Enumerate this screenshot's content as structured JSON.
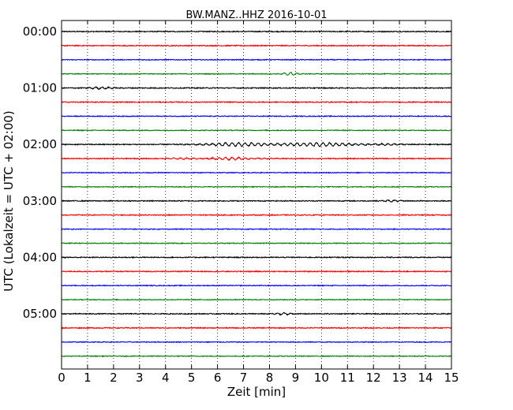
{
  "chart_data": {
    "type": "line",
    "title": "BW.MANZ..HHZ 2016-10-01",
    "xlabel": "Zeit  [min]",
    "ylabel": "UTC (Lokalzeit = UTC + 02:00)",
    "xlim": [
      0,
      15
    ],
    "x_ticks": [
      "0",
      "1",
      "2",
      "3",
      "4",
      "5",
      "6",
      "7",
      "8",
      "9",
      "10",
      "11",
      "12",
      "13",
      "14",
      "15"
    ],
    "y_tick_labels": [
      "00:00",
      "01:00",
      "02:00",
      "03:00",
      "04:00",
      "05:00"
    ],
    "trace_colors": [
      "#000000",
      "#ff0000",
      "#0000ff",
      "#008000"
    ],
    "grid": "vertical dotted",
    "series": [
      {
        "offset": "00:00",
        "color": "#000000",
        "noise": 0.12,
        "events": []
      },
      {
        "offset": "00:15",
        "color": "#ff0000",
        "noise": 0.12,
        "events": []
      },
      {
        "offset": "00:30",
        "color": "#0000ff",
        "noise": 0.1,
        "events": []
      },
      {
        "offset": "00:45",
        "color": "#008000",
        "noise": 0.1,
        "events": [
          {
            "t": 8.8,
            "amp": 0.35,
            "width": 0.3
          }
        ]
      },
      {
        "offset": "01:00",
        "color": "#000000",
        "noise": 0.12,
        "events": [
          {
            "t": 1.5,
            "amp": 0.25,
            "width": 0.5
          }
        ]
      },
      {
        "offset": "01:15",
        "color": "#ff0000",
        "noise": 0.12,
        "events": []
      },
      {
        "offset": "01:30",
        "color": "#0000ff",
        "noise": 0.1,
        "events": []
      },
      {
        "offset": "01:45",
        "color": "#008000",
        "noise": 0.1,
        "events": []
      },
      {
        "offset": "02:00",
        "color": "#000000",
        "noise": 0.12,
        "events": [
          {
            "t": 6.8,
            "amp": 0.45,
            "width": 1.3
          },
          {
            "t": 9.9,
            "amp": 0.45,
            "width": 1.4
          },
          {
            "t": 12.5,
            "amp": 0.15,
            "width": 0.8
          }
        ]
      },
      {
        "offset": "02:15",
        "color": "#ff0000",
        "noise": 0.12,
        "events": [
          {
            "t": 6.5,
            "amp": 0.3,
            "width": 1.0
          },
          {
            "t": 4.5,
            "amp": 0.15,
            "width": 0.6
          }
        ]
      },
      {
        "offset": "02:30",
        "color": "#0000ff",
        "noise": 0.1,
        "events": []
      },
      {
        "offset": "02:45",
        "color": "#008000",
        "noise": 0.1,
        "events": []
      },
      {
        "offset": "03:00",
        "color": "#000000",
        "noise": 0.12,
        "events": [
          {
            "t": 12.6,
            "amp": 0.2,
            "width": 0.4
          }
        ]
      },
      {
        "offset": "03:15",
        "color": "#ff0000",
        "noise": 0.12,
        "events": []
      },
      {
        "offset": "03:30",
        "color": "#0000ff",
        "noise": 0.1,
        "events": []
      },
      {
        "offset": "03:45",
        "color": "#008000",
        "noise": 0.1,
        "events": []
      },
      {
        "offset": "04:00",
        "color": "#000000",
        "noise": 0.12,
        "events": []
      },
      {
        "offset": "04:15",
        "color": "#ff0000",
        "noise": 0.12,
        "events": []
      },
      {
        "offset": "04:30",
        "color": "#0000ff",
        "noise": 0.1,
        "events": []
      },
      {
        "offset": "04:45",
        "color": "#008000",
        "noise": 0.1,
        "events": []
      },
      {
        "offset": "05:00",
        "color": "#000000",
        "noise": 0.12,
        "events": [
          {
            "t": 8.5,
            "amp": 0.25,
            "width": 0.4
          }
        ]
      },
      {
        "offset": "05:15",
        "color": "#ff0000",
        "noise": 0.12,
        "events": []
      },
      {
        "offset": "05:30",
        "color": "#0000ff",
        "noise": 0.1,
        "events": []
      },
      {
        "offset": "05:45",
        "color": "#008000",
        "noise": 0.1,
        "events": []
      }
    ]
  }
}
